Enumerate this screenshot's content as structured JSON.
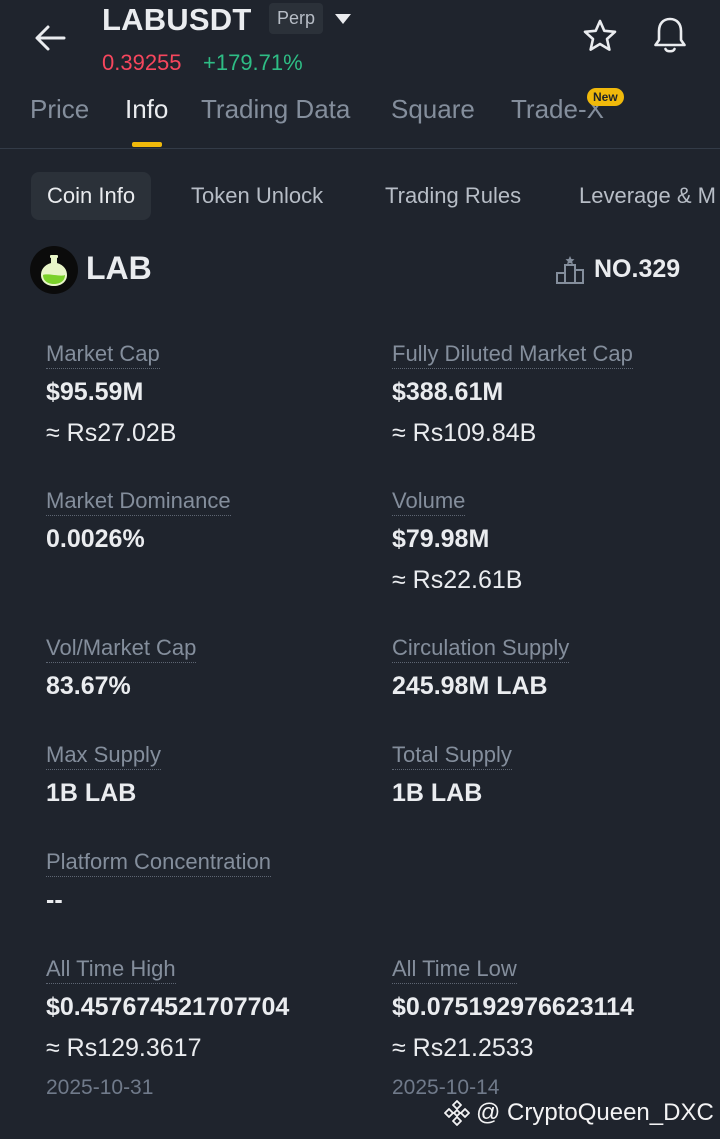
{
  "header": {
    "symbol": "LABUSDT",
    "badge": "Perp",
    "price": "0.39255",
    "change": "+179.71%",
    "icons": [
      "back-arrow-icon",
      "chevron-down-icon",
      "star-icon",
      "bell-icon"
    ]
  },
  "main_tabs": [
    {
      "label": "Price"
    },
    {
      "label": "Info"
    },
    {
      "label": "Trading Data"
    },
    {
      "label": "Square"
    },
    {
      "label": "Trade-X"
    }
  ],
  "new_badge": "New",
  "sub_tabs": [
    {
      "label": "Coin Info"
    },
    {
      "label": "Token Unlock"
    },
    {
      "label": "Trading Rules"
    },
    {
      "label": "Leverage & M"
    }
  ],
  "coin": {
    "name": "LAB",
    "rank": "NO.329",
    "icons": [
      "coin-logo-icon",
      "ranking-podium-icon"
    ]
  },
  "metrics": {
    "market_cap": {
      "label": "Market Cap",
      "value": "$95.59M",
      "sub": "≈ Rs27.02B"
    },
    "fdv": {
      "label": "Fully Diluted Market Cap",
      "value": "$388.61M",
      "sub": "≈ Rs109.84B"
    },
    "dominance": {
      "label": "Market Dominance",
      "value": "0.0026%"
    },
    "volume": {
      "label": "Volume",
      "value": "$79.98M",
      "sub": "≈ Rs22.61B"
    },
    "vol_mcap": {
      "label": "Vol/Market Cap",
      "value": "83.67%"
    },
    "circulation": {
      "label": "Circulation Supply",
      "value": "245.98M LAB"
    },
    "max_supply": {
      "label": "Max Supply",
      "value": "1B LAB"
    },
    "total_supply": {
      "label": "Total Supply",
      "value": "1B LAB"
    },
    "platform": {
      "label": "Platform Concentration",
      "value": "--"
    },
    "ath": {
      "label": "All Time High",
      "value": "$0.457674521707704",
      "sub": "≈ Rs129.3617",
      "date": "2025-10-31"
    },
    "atl": {
      "label": "All Time Low",
      "value": "$0.075192976623114",
      "sub": "≈ Rs21.2533",
      "date": "2025-10-14"
    }
  },
  "watermark": {
    "text": "@ CryptoQueen_DXC",
    "icon": "binance-logo-icon"
  },
  "colors": {
    "background": "#1f242d",
    "accent": "#f0b90b",
    "down": "#f6465d",
    "up": "#2ebd85",
    "muted": "#848e9c"
  }
}
